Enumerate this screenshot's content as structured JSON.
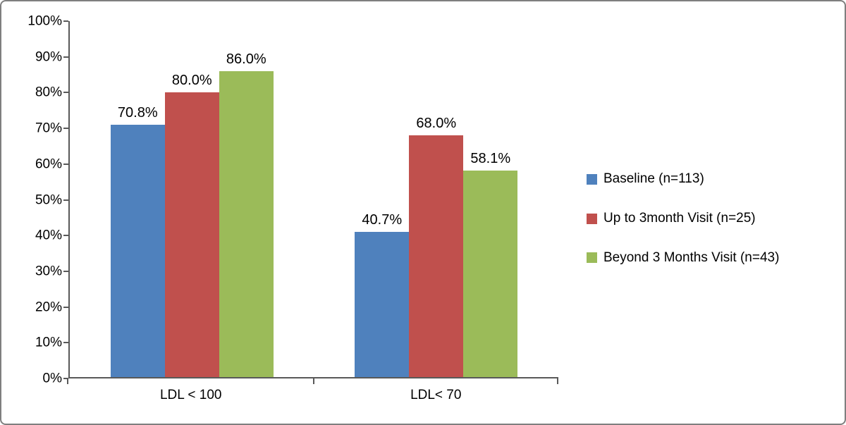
{
  "chart_data": {
    "type": "bar",
    "title": "",
    "categories": [
      "LDL < 100",
      "LDL< 70"
    ],
    "series": [
      {
        "name": "Baseline (n=113)",
        "color": "#4F81BD",
        "values": [
          70.8,
          40.7
        ]
      },
      {
        "name": "Up to 3month Visit (n=25)",
        "color": "#C0504D",
        "values": [
          80.0,
          68.0
        ]
      },
      {
        "name": "Beyond 3 Months Visit (n=43)",
        "color": "#9BBB59",
        "values": [
          86.0,
          58.1
        ]
      }
    ],
    "data_labels": [
      [
        "70.8%",
        "40.7%"
      ],
      [
        "80.0%",
        "68.0%"
      ],
      [
        "86.0%",
        "58.1%"
      ]
    ],
    "ylim": [
      0,
      100
    ],
    "yticks": [
      0,
      10,
      20,
      30,
      40,
      50,
      60,
      70,
      80,
      90,
      100
    ],
    "ytick_suffix": "%",
    "xlabel": "",
    "ylabel": "",
    "grid": false,
    "legend_position": "right"
  }
}
